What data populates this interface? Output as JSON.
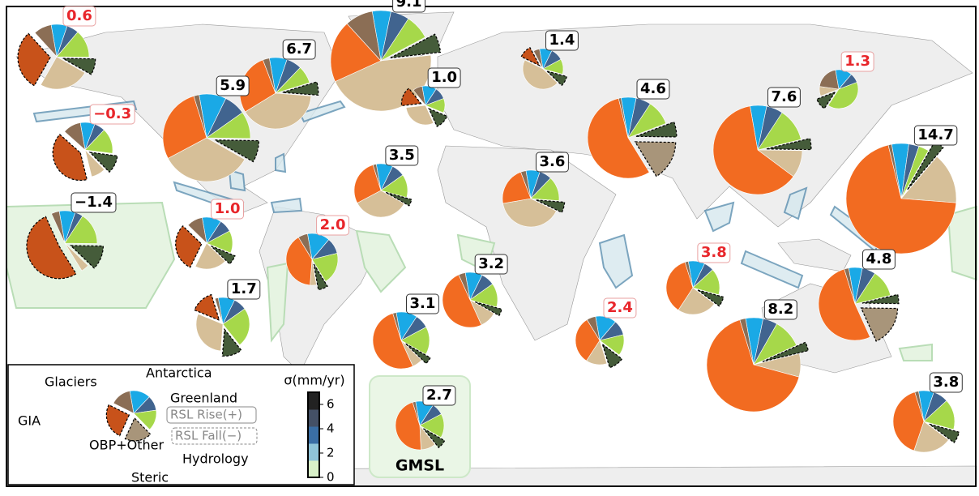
{
  "chart_data": {
    "type": "pie-map",
    "components": [
      {
        "name": "Glaciers",
        "color": "#1aa9e6",
        "fall_color": "#1aa9e6"
      },
      {
        "name": "Antarctica",
        "color": "#41648f",
        "fall_color": "#41648f"
      },
      {
        "name": "Greenland",
        "color": "#a6d84a",
        "fall_color": "#a6d84a"
      },
      {
        "name": "GIA",
        "color": "#455c3a",
        "fall_color": "#455c3a"
      },
      {
        "name": "OBP+Other",
        "color": "#d6bf98",
        "fall_color": "#a8957a"
      },
      {
        "name": "Steric",
        "color": "#f26b21",
        "fall_color": "#c8521a"
      },
      {
        "name": "Hydrology",
        "color": "#8b6e55",
        "fall_color": "#8b6e55"
      }
    ],
    "pies": [
      {
        "label": "0.6",
        "label_color": "#e8262b",
        "shares": [
          8,
          6,
          14,
          -8,
          25,
          -30,
          9
        ]
      },
      {
        "label": "9.1",
        "label_color": "#000000",
        "shares": [
          6,
          6,
          8,
          -6,
          45,
          20,
          9
        ]
      },
      {
        "label": "6.7",
        "label_color": "#000000",
        "shares": [
          8,
          7,
          8,
          -6,
          40,
          28,
          3
        ]
      },
      {
        "label": "5.9",
        "label_color": "#000000",
        "shares": [
          10,
          8,
          10,
          -8,
          34,
          28,
          2
        ]
      },
      {
        "label": "1.4",
        "label_color": "#000000",
        "shares": [
          10,
          10,
          12,
          -8,
          45,
          -10,
          5
        ]
      },
      {
        "label": "1.0",
        "label_color": "#000000",
        "shares": [
          12,
          10,
          12,
          -12,
          30,
          -16,
          8
        ]
      },
      {
        "label": "1.3",
        "label_color": "#e8262b",
        "shares": [
          14,
          8,
          40,
          -10,
          8,
          0,
          20
        ]
      },
      {
        "label": "−0.3",
        "label_color": "#e8262b",
        "shares": [
          8,
          6,
          14,
          -10,
          8,
          -38,
          10
        ]
      },
      {
        "label": "−1.4",
        "label_color": "#000000",
        "shares": [
          8,
          4,
          16,
          -12,
          4,
          -52,
          4
        ]
      },
      {
        "label": "4.6",
        "label_color": "#000000",
        "shares": [
          6,
          6,
          10,
          -6,
          -16,
          55,
          1
        ]
      },
      {
        "label": "7.6",
        "label_color": "#000000",
        "shares": [
          6,
          6,
          12,
          -4,
          10,
          62,
          0
        ]
      },
      {
        "label": "14.7",
        "label_color": "#000000",
        "shares": [
          5,
          3,
          3,
          -3,
          15,
          70,
          1
        ]
      },
      {
        "label": "3.5",
        "label_color": "#000000",
        "shares": [
          10,
          8,
          14,
          -4,
          34,
          28,
          2
        ]
      },
      {
        "label": "3.6",
        "label_color": "#000000",
        "shares": [
          8,
          7,
          14,
          -6,
          40,
          22,
          3
        ]
      },
      {
        "label": "1.0",
        "label_color": "#e8262b",
        "shares": [
          12,
          8,
          14,
          -6,
          20,
          -30,
          10
        ]
      },
      {
        "label": "2.0",
        "label_color": "#e8262b",
        "shares": [
          14,
          10,
          20,
          -6,
          4,
          40,
          6
        ]
      },
      {
        "label": "3.2",
        "label_color": "#000000",
        "shares": [
          10,
          8,
          14,
          -4,
          10,
          50,
          4
        ]
      },
      {
        "label": "1.7",
        "label_color": "#000000",
        "shares": [
          10,
          8,
          24,
          -12,
          30,
          -14,
          2
        ]
      },
      {
        "label": "3.1",
        "label_color": "#000000",
        "shares": [
          12,
          8,
          16,
          -4,
          6,
          52,
          2
        ]
      },
      {
        "label": "2.4",
        "label_color": "#e8262b",
        "shares": [
          14,
          10,
          14,
          -10,
          14,
          32,
          6
        ]
      },
      {
        "label": "3.8",
        "label_color": "#e8262b",
        "shares": [
          10,
          6,
          16,
          -6,
          24,
          36,
          2
        ]
      },
      {
        "label": "8.2",
        "label_color": "#000000",
        "shares": [
          6,
          5,
          10,
          -3,
          8,
          66,
          2
        ]
      },
      {
        "label": "4.8",
        "label_color": "#000000",
        "shares": [
          6,
          6,
          12,
          -4,
          -18,
          52,
          2
        ]
      },
      {
        "label": "3.8",
        "label_color": "#000000",
        "shares": [
          8,
          8,
          16,
          -6,
          20,
          40,
          2
        ]
      }
    ],
    "gmsl": {
      "title": "GMSL",
      "label": "2.7",
      "label_color": "#000000",
      "shares": [
        12,
        8,
        16,
        -6,
        10,
        46,
        2
      ]
    },
    "legend": {
      "rise": "RSL Rise(+)",
      "fall": "RSL Fall(−)",
      "shares": [
        14,
        10,
        14,
        0,
        -18,
        -24,
        14
      ]
    },
    "colorbar": {
      "title": "σ(mm/yr)",
      "ylim": [
        0,
        7
      ],
      "yticks": [
        0,
        2,
        4,
        6
      ],
      "colors": [
        "#d8f0c8",
        "#8fc4d8",
        "#3a6ea5",
        "#445066",
        "#222222"
      ]
    }
  }
}
